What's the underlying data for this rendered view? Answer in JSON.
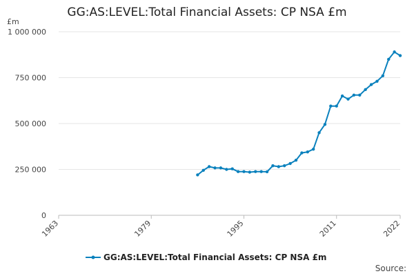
{
  "chart_data": {
    "type": "line",
    "title": "GG:AS:LEVEL:Total Financial Assets: CP NSA £m",
    "ylabel": "£m",
    "xlabel": "",
    "xlim": [
      1963,
      2022
    ],
    "ylim": [
      0,
      1000000
    ],
    "yticks": [
      0,
      250000,
      500000,
      750000,
      1000000
    ],
    "ytick_labels": [
      "0",
      "250 000",
      "500 000",
      "750 000",
      "1 000 000"
    ],
    "xticks": [
      1963,
      1979,
      1995,
      2011,
      2022
    ],
    "xtick_labels": [
      "1963",
      "1979",
      "1995",
      "2011",
      "2022"
    ],
    "grid": "horizontal",
    "legend_position": "bottom",
    "color": "#0a81bd",
    "source_label": "Source:",
    "series": [
      {
        "name": "GG:AS:LEVEL:Total Financial Assets: CP NSA £m",
        "x": [
          1987,
          1988,
          1989,
          1990,
          1991,
          1992,
          1993,
          1994,
          1995,
          1996,
          1997,
          1998,
          1999,
          2000,
          2001,
          2002,
          2003,
          2004,
          2005,
          2006,
          2007,
          2008,
          2009,
          2010,
          2011,
          2012,
          2013,
          2014,
          2015,
          2016,
          2017,
          2018,
          2019,
          2020,
          2021,
          2022
        ],
        "y": [
          220000,
          245000,
          265000,
          258000,
          258000,
          250000,
          253000,
          238000,
          238000,
          235000,
          238000,
          238000,
          237000,
          270000,
          265000,
          270000,
          282000,
          300000,
          340000,
          345000,
          360000,
          450000,
          495000,
          595000,
          595000,
          650000,
          633000,
          655000,
          655000,
          685000,
          712000,
          730000,
          760000,
          850000,
          890000,
          870000
        ]
      }
    ]
  }
}
